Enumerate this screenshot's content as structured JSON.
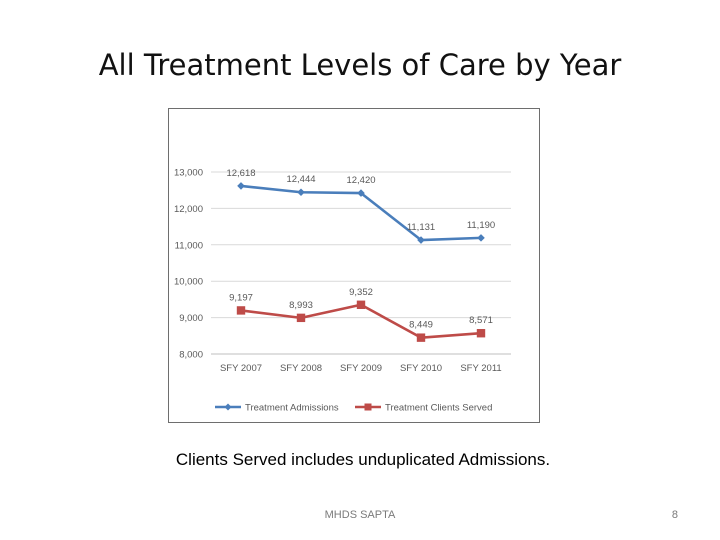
{
  "slide": {
    "title": "All Treatment Levels of Care by Year",
    "caption": "Clients Served includes unduplicated Admissions.",
    "footer_center": "MHDS SAPTA",
    "page_number": "8"
  },
  "colors": {
    "admissions": "#4a7ebb",
    "clients_served": "#be4b48",
    "grid": "#d9d9d9",
    "text": "#595959"
  },
  "chart_data": {
    "type": "line",
    "title": "",
    "xlabel": "",
    "ylabel": "",
    "categories": [
      "SFY 2007",
      "SFY 2008",
      "SFY 2009",
      "SFY 2010",
      "SFY 2011"
    ],
    "ylim": [
      8000,
      13000
    ],
    "yticks": [
      8000,
      9000,
      10000,
      11000,
      12000,
      13000
    ],
    "ytick_labels": [
      "8,000",
      "9,000",
      "10,000",
      "11,000",
      "12,000",
      "13,000"
    ],
    "grid": true,
    "legend_position": "bottom",
    "series": [
      {
        "name": "Treatment Admissions",
        "marker": "diamond",
        "values": [
          12618,
          12444,
          12420,
          11131,
          11190
        ],
        "labels": [
          "12,618",
          "12,444",
          "12,420",
          "11,131",
          "11,190"
        ]
      },
      {
        "name": "Treatment Clients Served",
        "marker": "square",
        "values": [
          9197,
          8993,
          9352,
          8449,
          8571
        ],
        "labels": [
          "9,197",
          "8,993",
          "9,352",
          "8,449",
          "8,571"
        ]
      }
    ]
  }
}
